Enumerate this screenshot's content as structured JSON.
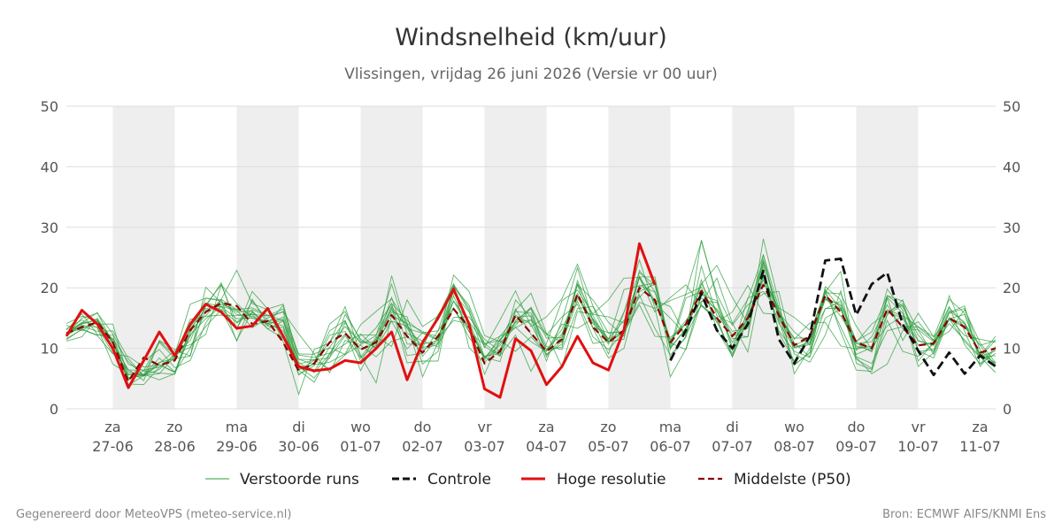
{
  "title": "Windsnelheid (km/uur)",
  "subtitle": "Vlissingen, vrijdag 26 juni 2026 (Versie vr 00 uur)",
  "footer_left": "Gegenereerd door MeteoVPS (meteo-service.nl)",
  "footer_right": "Bron: ECMWF AIFS/KNMI Ens",
  "colors": {
    "ensemble": "#2e9e3e",
    "control": "#111111",
    "high_res": "#e01010",
    "median": "#8b0000",
    "weekend_band": "#eeeeee",
    "grid": "#dddddd"
  },
  "chart_data": {
    "type": "line",
    "ylim": [
      0,
      50
    ],
    "yticks": [
      0,
      10,
      20,
      30,
      40,
      50
    ],
    "x_range_days": [
      0,
      15
    ],
    "grid": true,
    "legend_position": "bottom",
    "weekend_bands": [
      [
        0.75,
        1.75
      ],
      [
        2.75,
        3.75
      ],
      [
        4.75,
        5.75
      ],
      [
        6.75,
        7.75
      ],
      [
        8.75,
        9.75
      ],
      [
        10.75,
        11.75
      ],
      [
        12.75,
        13.75
      ]
    ],
    "x_ticks": [
      {
        "day": 0.75,
        "weekday": "za",
        "date": "27-06"
      },
      {
        "day": 1.75,
        "weekday": "zo",
        "date": "28-06"
      },
      {
        "day": 2.75,
        "weekday": "ma",
        "date": "29-06"
      },
      {
        "day": 3.75,
        "weekday": "di",
        "date": "30-06"
      },
      {
        "day": 4.75,
        "weekday": "wo",
        "date": "01-07"
      },
      {
        "day": 5.75,
        "weekday": "do",
        "date": "02-07"
      },
      {
        "day": 6.75,
        "weekday": "vr",
        "date": "03-07"
      },
      {
        "day": 7.75,
        "weekday": "za",
        "date": "04-07"
      },
      {
        "day": 8.75,
        "weekday": "zo",
        "date": "05-07"
      },
      {
        "day": 9.75,
        "weekday": "ma",
        "date": "06-07"
      },
      {
        "day": 10.75,
        "weekday": "di",
        "date": "07-07"
      },
      {
        "day": 11.75,
        "weekday": "wo",
        "date": "08-07"
      },
      {
        "day": 12.75,
        "weekday": "do",
        "date": "09-07"
      },
      {
        "day": 13.75,
        "weekday": "vr",
        "date": "10-07"
      },
      {
        "day": 14.75,
        "weekday": "za",
        "date": "11-07"
      }
    ],
    "legend": [
      {
        "key": "ensemble",
        "label": "Verstoorde runs"
      },
      {
        "key": "control",
        "label": "Controle"
      },
      {
        "key": "high_res",
        "label": "Hoge resolutie"
      },
      {
        "key": "median",
        "label": "Middelste (P50)"
      }
    ],
    "series": [
      {
        "name": "Hoge resolutie",
        "key": "high_res",
        "x": [
          0,
          0.25,
          0.5,
          0.75,
          1,
          1.25,
          1.5,
          1.75,
          2,
          2.25,
          2.5,
          2.75,
          3,
          3.25,
          3.5,
          3.75,
          4,
          4.25,
          4.5,
          4.75,
          5,
          5.25,
          5.5,
          5.75,
          6,
          6.25,
          6.5,
          6.75,
          7,
          7.25,
          7.5,
          7.75,
          8,
          8.25,
          8.5,
          8.75,
          9,
          9.25,
          9.5
        ],
        "y": [
          12,
          16.3,
          14,
          10,
          3.5,
          8,
          12.7,
          8.8,
          14,
          17.3,
          16,
          13.3,
          13.7,
          16.6,
          12,
          7,
          6.3,
          6.6,
          8,
          7.6,
          10,
          12.7,
          4.8,
          11,
          15,
          19.8,
          14,
          3.3,
          1.9,
          11.6,
          9.6,
          4,
          7,
          12,
          7.6,
          6.4,
          13,
          27.3,
          20.5
        ]
      },
      {
        "name": "Controle",
        "key": "control",
        "x": [
          9.75,
          10,
          10.25,
          10.5,
          10.75,
          11,
          11.25,
          11.5,
          11.75,
          12,
          12.25,
          12.5,
          12.75,
          13,
          13.25,
          13.5,
          13.75,
          14,
          14.25,
          14.5,
          14.75,
          15
        ],
        "y": [
          8,
          13,
          19,
          13,
          10,
          14,
          22.8,
          11.5,
          7.5,
          12,
          24.5,
          24.8,
          15.5,
          20.6,
          22.5,
          14,
          9.6,
          5.6,
          9.3,
          5.8,
          8.8,
          7
        ]
      },
      {
        "name": "Middelste (P50)",
        "key": "median",
        "x": [
          0,
          0.25,
          0.5,
          0.75,
          1,
          1.25,
          1.5,
          1.75,
          2,
          2.25,
          2.5,
          2.75,
          3,
          3.25,
          3.5,
          3.75,
          4,
          4.25,
          4.5,
          4.75,
          5,
          5.25,
          5.5,
          5.75,
          6,
          6.25,
          6.5,
          6.75,
          7,
          7.25,
          7.5,
          7.75,
          8,
          8.25,
          8.5,
          8.75,
          9,
          9.25,
          9.5,
          9.75,
          10,
          10.25,
          10.5,
          10.75,
          11,
          11.25,
          11.5,
          11.75,
          12,
          12.25,
          12.5,
          12.75,
          13,
          13.25,
          13.5,
          13.75,
          14,
          14.25,
          14.5,
          14.75,
          15
        ],
        "y": [
          12.5,
          13.5,
          14.3,
          11,
          4.5,
          8.5,
          7.2,
          8,
          13,
          16,
          17.5,
          17,
          14,
          14.5,
          11,
          6.3,
          7.5,
          11,
          12.5,
          9.8,
          11,
          15.5,
          12,
          9.3,
          12,
          16.5,
          13.5,
          7.5,
          9.5,
          15.5,
          12.5,
          9.5,
          11.5,
          19,
          13.5,
          11,
          13,
          20,
          18,
          11,
          14,
          19.5,
          15,
          12,
          15,
          20.5,
          15.5,
          10.5,
          12,
          18.8,
          16,
          11,
          10,
          16.5,
          13.5,
          10.5,
          10.8,
          15,
          13.5,
          9.3,
          10
        ]
      }
    ],
    "ensemble_runs": [
      [
        12.2,
        15.0,
        15.8,
        12.4,
        7.4,
        6.3,
        11.2,
        8.9,
        10.2,
        13.6,
        16.4,
        14.3,
        16.4,
        15.3,
        16.0,
        12.4,
        9.1,
        10.1,
        9.0,
        10.5,
        8.6,
        11.2,
        11.9,
        10.1,
        15.6,
        19.1,
        16.0,
        10.1,
        14.7,
        19.5,
        13.6,
        15.2,
        18.2,
        23.9,
        17.0,
        12.5,
        12.8,
        17.6,
        16.6,
        17.9,
        18.9,
        20.1,
        14.3,
        16.0,
        20.4,
        15.8,
        15.6,
        11.5,
        14.2,
        14.3,
        10.4,
        9.9,
        10.3,
        13.7,
        15.4,
        13.6,
        11.9,
        18.1,
        15.8,
        8.6,
        6.0
      ],
      [
        11.2,
        11.9,
        15.0,
        10.9,
        4.8,
        7.9,
        9.8,
        6.8,
        8.0,
        14.2,
        18.1,
        22.9,
        17.4,
        16.4,
        11.1,
        2.4,
        9.8,
        10.9,
        16.9,
        8.8,
        4.3,
        15.4,
        14.1,
        12.8,
        11.4,
        20.2,
        17.1,
        10.8,
        8.8,
        12.2,
        6.2,
        10.8,
        17.9,
        19.6,
        15.7,
        18.0,
        21.6,
        21.7,
        17.9,
        16.9,
        12.0,
        20.6,
        23.7,
        18.4,
        14.1,
        22.2,
        15.3,
        11.7,
        11.7,
        16.5,
        17.8,
        11.2,
        12.7,
        18.7,
        17.8,
        13.0,
        9.0,
        15.1,
        12.1,
        11.5,
        11.0
      ],
      [
        13.0,
        15.7,
        12.3,
        11.6,
        7.8,
        5.5,
        5.8,
        8.7,
        14.8,
        15.3,
        15.5,
        15.4,
        15.6,
        13.2,
        11.7,
        6.4,
        8.0,
        11.0,
        14.5,
        7.8,
        11.9,
        10.3,
        18.0,
        13.6,
        15.3,
        20.6,
        10.1,
        7.6,
        10.9,
        13.5,
        11.1,
        9.5,
        14.0,
        13.3,
        14.9,
        11.6,
        14.6,
        18.4,
        21.2,
        10.4,
        19.1,
        27.7,
        18.9,
        13.8,
        17.2,
        19.0,
        19.4,
        9.1,
        7.7,
        12.2,
        19.5,
        8.5,
        5.8,
        7.4,
        12.9,
        14.4,
        11.2,
        12.8,
        16.4,
        10.9,
        7.6
      ],
      [
        13.8,
        12.9,
        14.4,
        11.5,
        6.1,
        5.7,
        4.8,
        5.8,
        13.5,
        17.2,
        16.4,
        11.3,
        16.1,
        13.7,
        13.4,
        5.6,
        7.6,
        12.9,
        14.6,
        8.6,
        11.5,
        14.5,
        9.9,
        12.6,
        12.9,
        16.7,
        11.8,
        8.5,
        7.8,
        16.3,
        19.1,
        12.5,
        6.9,
        16.1,
        15.6,
        15.2,
        14.2,
        21.7,
        16.0,
        18.4,
        20.5,
        17.1,
        14.4,
        9.1,
        16.3,
        24.6,
        14.9,
        10.6,
        11.5,
        19.2,
        19.0,
        13.7,
        9.8,
        18.3,
        11.3,
        15.8,
        11.9,
        14.8,
        13.8,
        9.0,
        7.2
      ],
      [
        11.6,
        13.1,
        12.1,
        9.1,
        8.7,
        6.9,
        7.3,
        6.0,
        12.2,
        14.9,
        16.9,
        13.3,
        17.8,
        14.6,
        14.8,
        8.2,
        8.1,
        8.4,
        15.6,
        11.5,
        10.0,
        16.0,
        15.2,
        7.4,
        9.5,
        18.7,
        12.7,
        10.6,
        12.0,
        13.4,
        14.7,
        12.4,
        11.0,
        17.8,
        11.9,
        9.8,
        12.7,
        21.8,
        17.4,
        15.0,
        12.1,
        17.2,
        15.0,
        8.6,
        14.6,
        23.6,
        12.6,
        7.9,
        12.2,
        19.7,
        12.7,
        6.4,
        6.2,
        14.6,
        9.5,
        8.7,
        10.7,
        14.1,
        11.4,
        8.7,
        12.0
      ],
      [
        13.2,
        14.7,
        13.4,
        7.4,
        5.8,
        5.6,
        11.0,
        8.4,
        12.0,
        16.9,
        20.8,
        13.1,
        19.4,
        16.5,
        17.3,
        8.2,
        7.3,
        7.7,
        9.1,
        13.9,
        16.1,
        18.2,
        14.2,
        5.3,
        11.0,
        22.1,
        19.4,
        12.1,
        11.1,
        16.5,
        12.3,
        9.5,
        13.2,
        18.7,
        13.3,
        8.4,
        10.0,
        19.4,
        20.6,
        9.8,
        18.3,
        19.4,
        16.1,
        12.3,
        11.9,
        25.5,
        14.6,
        7.2,
        9.3,
        16.6,
        16.6,
        10.4,
        9.6,
        18.7,
        16.9,
        12.2,
        9.4,
        18.7,
        12.8,
        7.0,
        10.0
      ],
      [
        12.5,
        14.3,
        14.0,
        14.0,
        5.1,
        5.5,
        6.5,
        9.0,
        17.3,
        18.3,
        17.8,
        15.6,
        15.3,
        14.1,
        12.9,
        7.4,
        8.1,
        6.6,
        8.9,
        12.2,
        12.2,
        17.4,
        8.8,
        9.2,
        12.9,
        20.6,
        16.6,
        10.3,
        8.7,
        18.0,
        15.1,
        7.9,
        14.6,
        23.3,
        14.5,
        9.1,
        15.9,
        24.6,
        16.7,
        5.3,
        9.9,
        18.8,
        17.9,
        11.6,
        11.9,
        28.1,
        17.7,
        5.8,
        10.0,
        19.3,
        22.7,
        7.5,
        6.5,
        18.4,
        15.8,
        7.0,
        9.3,
        15.9,
        17.0,
        7.4,
        9.2
      ],
      [
        12.6,
        13.2,
        14.5,
        10.7,
        6.5,
        4.7,
        11.3,
        9.8,
        10.6,
        12.3,
        20.5,
        14.2,
        15.9,
        13.8,
        15.2,
        9.1,
        9.0,
        6.0,
        11.3,
        10.6,
        12.1,
        20.6,
        12.5,
        11.2,
        10.2,
        19.6,
        13.7,
        8.4,
        11.4,
        13.8,
        16.6,
        8.6,
        12.1,
        20.5,
        13.4,
        12.6,
        12.7,
        18.8,
        13.3,
        8.9,
        11.8,
        23.6,
        15.4,
        14.1,
        18.1,
        25.4,
        16.7,
        15.1,
        13.0,
        18.4,
        15.3,
        10.9,
        9.4,
        15.6,
        17.1,
        11.3,
        10.5,
        15.8,
        16.6,
        9.7,
        7.4
      ],
      [
        12.4,
        13.7,
        12.8,
        12.9,
        8.3,
        5.4,
        7.5,
        9.6,
        8.8,
        20.1,
        17.5,
        16.0,
        16.2,
        13.2,
        14.5,
        6.5,
        7.4,
        14.0,
        16.1,
        11.2,
        10.2,
        22.0,
        13.4,
        8.7,
        11.7,
        14.6,
        14.0,
        5.7,
        11.5,
        14.3,
        16.8,
        12.2,
        15.2,
        17.3,
        10.8,
        11.2,
        19.7,
        20.3,
        20.8,
        8.4,
        12.0,
        27.9,
        18.3,
        10.2,
        15.9,
        24.2,
        15.7,
        7.3,
        9.3,
        19.2,
        13.5,
        8.2,
        6.7,
        15.6,
        18.0,
        9.6,
        8.4,
        14.9,
        15.6,
        8.5,
        11.4
      ],
      [
        12.6,
        14.0,
        14.7,
        11.1,
        4.8,
        6.3,
        5.9,
        5.7,
        12.5,
        18.3,
        18.0,
        11.2,
        18.1,
        14.0,
        17.1,
        7.0,
        5.1,
        8.5,
        12.1,
        8.4,
        10.6,
        16.9,
        13.3,
        12.5,
        11.3,
        19.5,
        14.4,
        10.8,
        11.3,
        9.5,
        11.9,
        9.1,
        10.7,
        20.7,
        15.4,
        11.1,
        11.5,
        22.9,
        19.4,
        10.9,
        9.8,
        17.5,
        21.6,
        14.2,
        9.4,
        22.2,
        15.9,
        12.7,
        10.6,
        18.5,
        17.0,
        8.6,
        7.5,
        12.9,
        13.6,
        13.5,
        11.4,
        16.9,
        10.6,
        7.4,
        10.3
      ],
      [
        12.0,
        13.8,
        13.5,
        9.2,
        6.4,
        6.4,
        6.9,
        8.9,
        11.3,
        17.2,
        20.5,
        17.4,
        15.0,
        14.1,
        14.6,
        7.7,
        6.0,
        9.1,
        10.7,
        12.4,
        9.9,
        14.5,
        13.7,
        9.8,
        10.7,
        15.1,
        15.2,
        11.5,
        9.5,
        16.1,
        15.8,
        10.3,
        9.8,
        16.6,
        16.9,
        11.1,
        12.6,
        17.2,
        12.0,
        11.8,
        14.1,
        17.8,
        17.6,
        9.7,
        18.3,
        19.4,
        16.1,
        10.9,
        8.6,
        15.0,
        16.5,
        11.0,
        14.0,
        15.9,
        17.4,
        9.5,
        9.8,
        14.8,
        13.5,
        10.5,
        11.3
      ],
      [
        14.1,
        15.3,
        14.7,
        9.6,
        3.9,
        5.5,
        7.3,
        6.1,
        13.0,
        15.4,
        18.1,
        16.4,
        16.7,
        15.5,
        14.6,
        5.7,
        7.1,
        12.2,
        12.8,
        6.3,
        11.6,
        16.8,
        7.6,
        7.9,
        7.9,
        20.4,
        16.2,
        8.5,
        9.8,
        15.5,
        14.0,
        8.9,
        11.2,
        21.2,
        14.7,
        10.7,
        16.0,
        22.5,
        20.5,
        10.0,
        13.2,
        21.3,
        13.1,
        8.7,
        15.5,
        21.3,
        14.2,
        10.1,
        10.6,
        19.7,
        16.6,
        9.0,
        10.1,
        19.8,
        16.3,
        7.9,
        11.0,
        14.9,
        14.1,
        10.5,
        7.0
      ],
      [
        11.4,
        13.2,
        12.2,
        12.2,
        4.1,
        4.0,
        6.9,
        8.3,
        8.7,
        17.5,
        16.9,
        16.3,
        13.4,
        15.0,
        16.1,
        6.4,
        4.4,
        9.0,
        14.2,
        10.8,
        13.4,
        17.4,
        14.6,
        12.5,
        12.0,
        17.8,
        13.3,
        8.1,
        12.0,
        15.1,
        15.4,
        9.8,
        10.2,
        20.6,
        18.0,
        14.3,
        12.0,
        21.8,
        21.8,
        10.1,
        13.3,
        17.0,
        14.9,
        8.6,
        15.2,
        22.3,
        12.9,
        9.5,
        8.5,
        20.2,
        18.0,
        9.7,
        11.9,
        17.2,
        13.2,
        13.1,
        11.1,
        14.9,
        11.1,
        8.5,
        8.8
      ],
      [
        12.4,
        14.2,
        15.9,
        10.8,
        5.6,
        5.6,
        8.4,
        6.1,
        10.0,
        16.3,
        17.2,
        16.4,
        15.6,
        15.4,
        16.5,
        8.9,
        8.5,
        9.2,
        12.4,
        9.9,
        10.8,
        18.4,
        10.7,
        10.7,
        11.3,
        16.6,
        12.8,
        8.7,
        9.1,
        14.6,
        16.6,
        11.7,
        11.8,
        18.3,
        14.8,
        11.0,
        12.8,
        21.9,
        17.5,
        11.4,
        14.6,
        18.3,
        16.5,
        12.8,
        13.3,
        24.2,
        16.1,
        10.1,
        11.1,
        18.1,
        17.3,
        10.8,
        11.1,
        16.0,
        15.0,
        10.5,
        11.0,
        16.7,
        14.1,
        9.1,
        7.6
      ],
      [
        12.3,
        14.1,
        14.7,
        11.2,
        5.1,
        5.6,
        7.7,
        8.3,
        13.2,
        16.6,
        16.9,
        14.9,
        15.0,
        14.5,
        13.7,
        6.7,
        6.2,
        10.2,
        13.6,
        11.0,
        11.1,
        16.4,
        13.9,
        10.1,
        11.0,
        17.8,
        14.3,
        8.5,
        10.5,
        14.3,
        14.7,
        9.8,
        12.4,
        19.1,
        14.1,
        11.5,
        12.9,
        20.4,
        19.3,
        11.4,
        14.0,
        20.7,
        16.2,
        11.0,
        14.9,
        21.8,
        16.5,
        10.2,
        10.8,
        18.1,
        16.5,
        10.1,
        10.3,
        16.4,
        15.3,
        11.2,
        10.5,
        16.2,
        14.3,
        8.6,
        9.6
      ]
    ]
  }
}
